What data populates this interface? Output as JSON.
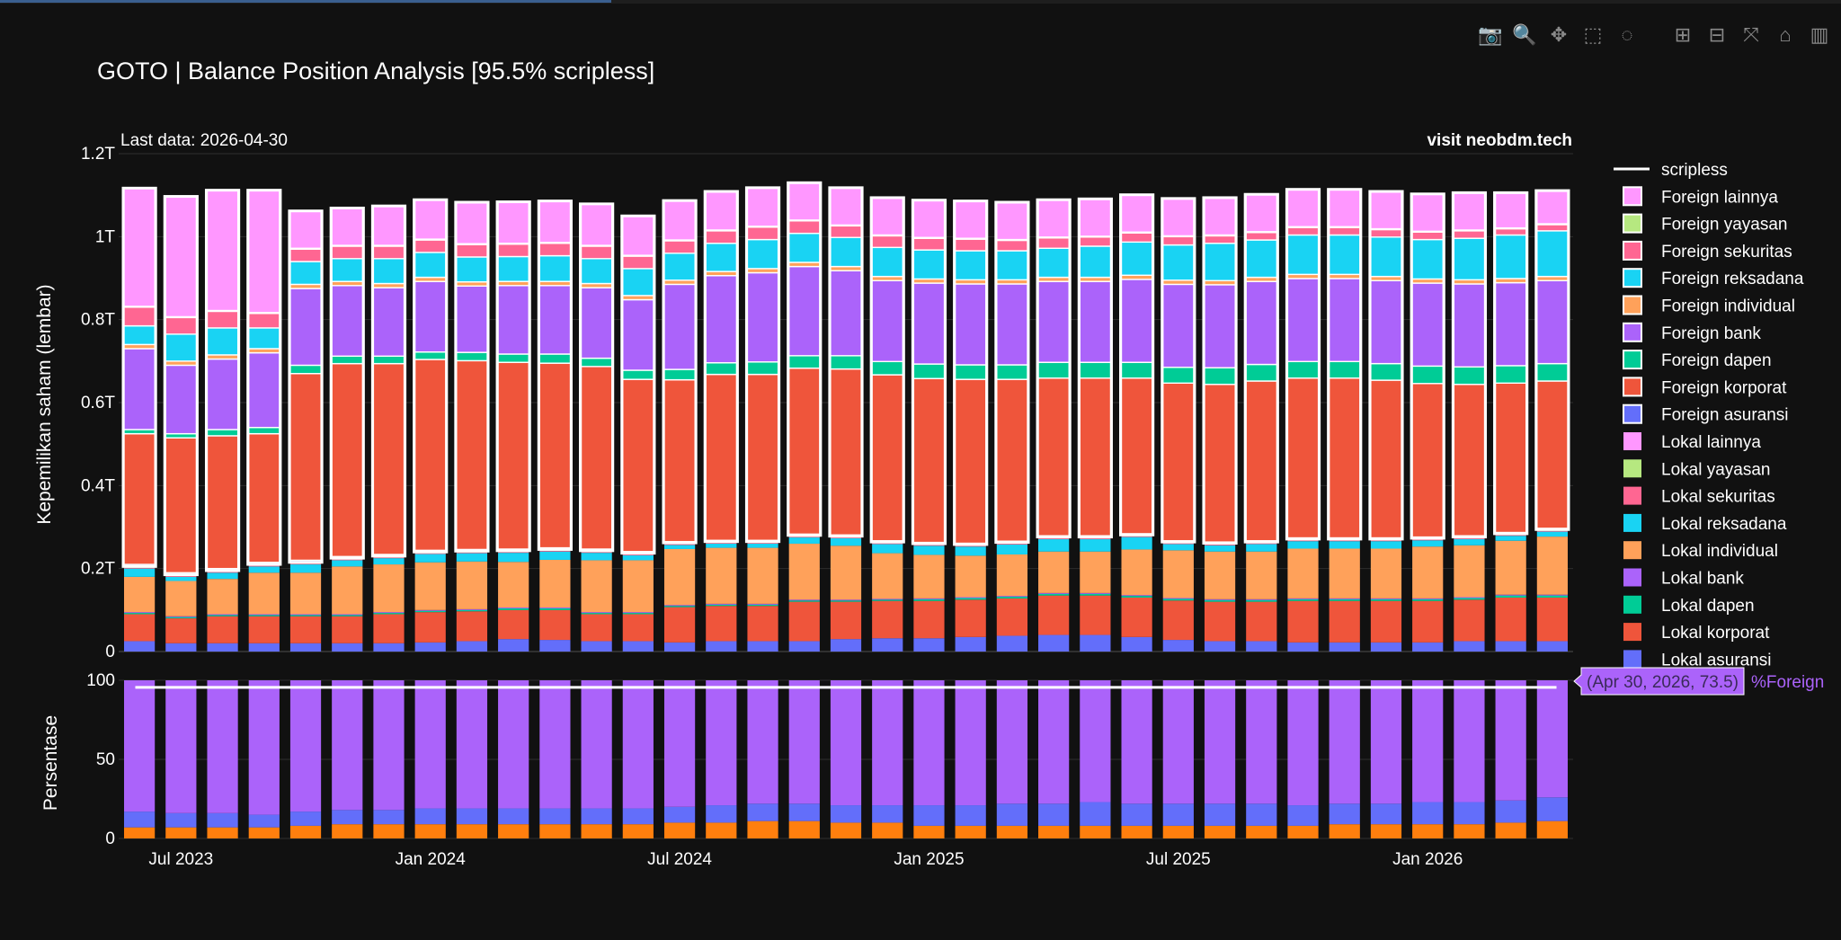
{
  "modebar": {
    "items": [
      {
        "name": "camera-icon",
        "glyph": "📷"
      },
      {
        "name": "zoom-icon",
        "glyph": "🔍"
      },
      {
        "name": "pan-icon",
        "glyph": "✥"
      },
      {
        "name": "box-select-icon",
        "glyph": "⬚"
      },
      {
        "name": "lasso-select-icon",
        "glyph": "◌"
      },
      {
        "name": "zoom-in-icon",
        "glyph": "⊞"
      },
      {
        "name": "zoom-out-icon",
        "glyph": "⊟"
      },
      {
        "name": "autoscale-icon",
        "glyph": "⤧"
      },
      {
        "name": "reset-axes-icon",
        "glyph": "⌂"
      },
      {
        "name": "plotly-logo-icon",
        "glyph": "▥"
      }
    ]
  },
  "chart_data": {
    "type": "bar",
    "title": "GOTO | Balance Position Analysis [95.5% scripless]",
    "annotations": {
      "last_data": "Last data: 2026-04-30",
      "watermark": "visit neobdm.tech",
      "hover_label": "(Apr 30, 2026, 73.5)",
      "hover_series": "%Foreign"
    },
    "top_panel": {
      "ylabel": "Kepemilikan saham (lembar)",
      "ylim": [
        0,
        1.2
      ],
      "yticks": [
        0,
        0.2,
        0.4,
        0.6,
        0.8,
        1.0,
        1.2
      ],
      "ytick_labels": [
        "0",
        "0.2T",
        "0.4T",
        "0.6T",
        "0.8T",
        "1T",
        "1.2T"
      ],
      "unit": "trillion shares"
    },
    "bottom_panel": {
      "ylabel": "Persentase",
      "ylim": [
        0,
        100
      ],
      "yticks": [
        0,
        50,
        100
      ],
      "ytick_labels": [
        "0",
        "50",
        "100"
      ]
    },
    "x_tick_labels": [
      "Jul 2023",
      "Jan 2024",
      "Jul 2024",
      "Jan 2025",
      "Jul 2025",
      "Jan 2026"
    ],
    "x_tick_months": [
      1,
      7,
      13,
      19,
      25,
      31
    ],
    "dates": [
      "2023-06-30",
      "2023-07-31",
      "2023-08-31",
      "2023-09-30",
      "2023-10-31",
      "2023-11-30",
      "2023-12-31",
      "2024-01-31",
      "2024-02-29",
      "2024-03-31",
      "2024-04-30",
      "2024-05-31",
      "2024-06-30",
      "2024-07-31",
      "2024-08-31",
      "2024-09-30",
      "2024-10-31",
      "2024-11-30",
      "2024-12-31",
      "2025-01-31",
      "2025-02-28",
      "2025-03-31",
      "2025-04-30",
      "2025-05-31",
      "2025-06-30",
      "2025-07-31",
      "2025-08-31",
      "2025-09-30",
      "2025-10-31",
      "2025-11-30",
      "2025-12-31",
      "2026-01-31",
      "2026-02-28",
      "2026-03-31",
      "2026-04-30"
    ],
    "colors": {
      "asuransi": "#636efa",
      "korporat": "#ef553b",
      "dapen": "#00cc96",
      "bank": "#ab63fa",
      "individual": "#ffa15a",
      "reksadana": "#19d3f3",
      "sekuritas": "#ff6692",
      "yayasan": "#b6e880",
      "lainnya": "#ff97ff",
      "scripless": "#ffffff",
      "pct_foreign": "#ab63fa",
      "pct_lokal": "#636efa",
      "pct_other": "#ff7f0e"
    },
    "legend": {
      "placement": "right",
      "entries": [
        {
          "label": "scripless",
          "key": "scripless",
          "kind": "line"
        },
        {
          "label": "Foreign lainnya",
          "key": "lainnya",
          "kind": "box"
        },
        {
          "label": "Foreign yayasan",
          "key": "yayasan",
          "kind": "box"
        },
        {
          "label": "Foreign sekuritas",
          "key": "sekuritas",
          "kind": "box"
        },
        {
          "label": "Foreign reksadana",
          "key": "reksadana",
          "kind": "box"
        },
        {
          "label": "Foreign individual",
          "key": "individual",
          "kind": "box"
        },
        {
          "label": "Foreign bank",
          "key": "bank",
          "kind": "box"
        },
        {
          "label": "Foreign dapen",
          "key": "dapen",
          "kind": "box"
        },
        {
          "label": "Foreign korporat",
          "key": "korporat",
          "kind": "box"
        },
        {
          "label": "Foreign asuransi",
          "key": "asuransi",
          "kind": "box"
        },
        {
          "label": "Lokal lainnya",
          "key": "lainnya",
          "kind": "fill"
        },
        {
          "label": "Lokal yayasan",
          "key": "yayasan",
          "kind": "fill"
        },
        {
          "label": "Lokal sekuritas",
          "key": "sekuritas",
          "kind": "fill"
        },
        {
          "label": "Lokal reksadana",
          "key": "reksadana",
          "kind": "fill"
        },
        {
          "label": "Lokal individual",
          "key": "individual",
          "kind": "fill"
        },
        {
          "label": "Lokal bank",
          "key": "bank",
          "kind": "fill"
        },
        {
          "label": "Lokal dapen",
          "key": "dapen",
          "kind": "fill"
        },
        {
          "label": "Lokal korporat",
          "key": "korporat",
          "kind": "fill"
        },
        {
          "label": "Lokal asuransi",
          "key": "asuransi",
          "kind": "fill"
        }
      ]
    },
    "stack_order": [
      "asuransi",
      "korporat",
      "dapen",
      "bank",
      "individual",
      "reksadana",
      "sekuritas",
      "yayasan",
      "lainnya"
    ],
    "series": {
      "asuransi": [
        0.025,
        0.02,
        0.02,
        0.02,
        0.02,
        0.02,
        0.02,
        0.022,
        0.025,
        0.03,
        0.028,
        0.025,
        0.025,
        0.022,
        0.025,
        0.025,
        0.025,
        0.03,
        0.032,
        0.032,
        0.035,
        0.038,
        0.04,
        0.04,
        0.035,
        0.028,
        0.025,
        0.025,
        0.022,
        0.022,
        0.022,
        0.022,
        0.025,
        0.025,
        0.025
      ],
      "korporat": [
        0.065,
        0.06,
        0.065,
        0.065,
        0.065,
        0.065,
        0.07,
        0.073,
        0.072,
        0.07,
        0.072,
        0.065,
        0.065,
        0.085,
        0.085,
        0.085,
        0.095,
        0.09,
        0.09,
        0.09,
        0.09,
        0.09,
        0.095,
        0.095,
        0.095,
        0.095,
        0.095,
        0.095,
        0.1,
        0.1,
        0.1,
        0.1,
        0.1,
        0.105,
        0.105
      ],
      "dapen": [
        0.003,
        0.003,
        0.003,
        0.003,
        0.003,
        0.003,
        0.003,
        0.003,
        0.003,
        0.004,
        0.004,
        0.003,
        0.003,
        0.003,
        0.003,
        0.003,
        0.003,
        0.003,
        0.003,
        0.004,
        0.004,
        0.004,
        0.004,
        0.004,
        0.004,
        0.004,
        0.004,
        0.004,
        0.004,
        0.004,
        0.004,
        0.004,
        0.004,
        0.005,
        0.005
      ],
      "bank": [
        0.002,
        0.002,
        0.002,
        0.002,
        0.002,
        0.002,
        0.002,
        0.002,
        0.002,
        0.002,
        0.002,
        0.002,
        0.002,
        0.002,
        0.002,
        0.002,
        0.002,
        0.002,
        0.002,
        0.002,
        0.002,
        0.002,
        0.002,
        0.002,
        0.002,
        0.002,
        0.002,
        0.002,
        0.002,
        0.002,
        0.002,
        0.002,
        0.002,
        0.002,
        0.002
      ],
      "individual": [
        0.085,
        0.085,
        0.085,
        0.1,
        0.1,
        0.115,
        0.115,
        0.115,
        0.115,
        0.11,
        0.115,
        0.125,
        0.125,
        0.135,
        0.135,
        0.135,
        0.135,
        0.13,
        0.11,
        0.105,
        0.1,
        0.1,
        0.1,
        0.1,
        0.11,
        0.115,
        0.115,
        0.115,
        0.12,
        0.12,
        0.12,
        0.125,
        0.125,
        0.13,
        0.14
      ],
      "reksadana": [
        0.02,
        0.01,
        0.015,
        0.015,
        0.02,
        0.015,
        0.015,
        0.02,
        0.02,
        0.022,
        0.02,
        0.018,
        0.012,
        0.01,
        0.01,
        0.01,
        0.015,
        0.018,
        0.022,
        0.022,
        0.022,
        0.024,
        0.03,
        0.03,
        0.03,
        0.015,
        0.015,
        0.018,
        0.018,
        0.018,
        0.018,
        0.015,
        0.015,
        0.012,
        0.012
      ],
      "sekuritas": [
        0.002,
        0.002,
        0.002,
        0.002,
        0.002,
        0.002,
        0.002,
        0.002,
        0.002,
        0.002,
        0.002,
        0.002,
        0.002,
        0.002,
        0.002,
        0.002,
        0.002,
        0.002,
        0.002,
        0.002,
        0.002,
        0.002,
        0.002,
        0.002,
        0.002,
        0.002,
        0.002,
        0.002,
        0.002,
        0.002,
        0.002,
        0.002,
        0.002,
        0.002,
        0.002
      ],
      "yayasan": [
        0.001,
        0.001,
        0.001,
        0.001,
        0.001,
        0.001,
        0.001,
        0.001,
        0.001,
        0.001,
        0.001,
        0.001,
        0.001,
        0.001,
        0.001,
        0.001,
        0.001,
        0.001,
        0.001,
        0.001,
        0.001,
        0.001,
        0.001,
        0.001,
        0.001,
        0.001,
        0.001,
        0.001,
        0.001,
        0.001,
        0.001,
        0.001,
        0.001,
        0.001,
        0.001
      ],
      "lainnya": [
        0.002,
        0.002,
        0.002,
        0.002,
        0.002,
        0.002,
        0.002,
        0.002,
        0.002,
        0.002,
        0.002,
        0.002,
        0.002,
        0.002,
        0.002,
        0.002,
        0.002,
        0.002,
        0.002,
        0.002,
        0.002,
        0.002,
        0.002,
        0.002,
        0.002,
        0.002,
        0.002,
        0.002,
        0.002,
        0.002,
        0.002,
        0.002,
        0.002,
        0.002,
        0.002
      ]
    },
    "foreign_series": {
      "asuransi": [
        0.005,
        0.005,
        0.005,
        0.005,
        0.005,
        0.004,
        0.004,
        0.004,
        0.004,
        0.004,
        0.004,
        0.004,
        0.004,
        0.003,
        0.003,
        0.003,
        0.003,
        0.003,
        0.003,
        0.003,
        0.003,
        0.003,
        0.003,
        0.003,
        0.003,
        0.003,
        0.003,
        0.003,
        0.003,
        0.003,
        0.003,
        0.003,
        0.003,
        0.003,
        0.003
      ],
      "korporat": [
        0.315,
        0.325,
        0.32,
        0.31,
        0.45,
        0.465,
        0.46,
        0.46,
        0.455,
        0.45,
        0.445,
        0.44,
        0.415,
        0.39,
        0.4,
        0.4,
        0.4,
        0.4,
        0.4,
        0.395,
        0.395,
        0.39,
        0.38,
        0.38,
        0.375,
        0.38,
        0.38,
        0.385,
        0.385,
        0.385,
        0.38,
        0.37,
        0.365,
        0.36,
        0.355
      ],
      "dapen": [
        0.01,
        0.01,
        0.015,
        0.015,
        0.02,
        0.018,
        0.018,
        0.018,
        0.02,
        0.02,
        0.022,
        0.02,
        0.022,
        0.025,
        0.028,
        0.03,
        0.03,
        0.032,
        0.032,
        0.035,
        0.035,
        0.035,
        0.038,
        0.038,
        0.038,
        0.038,
        0.04,
        0.04,
        0.04,
        0.04,
        0.04,
        0.042,
        0.042,
        0.042,
        0.042
      ],
      "bank": [
        0.195,
        0.165,
        0.17,
        0.18,
        0.185,
        0.17,
        0.165,
        0.17,
        0.16,
        0.165,
        0.165,
        0.17,
        0.17,
        0.205,
        0.21,
        0.215,
        0.215,
        0.205,
        0.195,
        0.195,
        0.195,
        0.195,
        0.195,
        0.195,
        0.2,
        0.2,
        0.2,
        0.2,
        0.2,
        0.2,
        0.2,
        0.2,
        0.2,
        0.2,
        0.2
      ],
      "individual": [
        0.01,
        0.01,
        0.01,
        0.01,
        0.01,
        0.01,
        0.01,
        0.01,
        0.01,
        0.01,
        0.01,
        0.01,
        0.01,
        0.01,
        0.01,
        0.01,
        0.01,
        0.01,
        0.01,
        0.01,
        0.01,
        0.01,
        0.01,
        0.01,
        0.01,
        0.01,
        0.01,
        0.01,
        0.01,
        0.01,
        0.01,
        0.01,
        0.01,
        0.01,
        0.01
      ],
      "reksadana": [
        0.045,
        0.065,
        0.065,
        0.05,
        0.055,
        0.055,
        0.06,
        0.06,
        0.06,
        0.06,
        0.062,
        0.06,
        0.065,
        0.065,
        0.068,
        0.07,
        0.07,
        0.07,
        0.07,
        0.07,
        0.07,
        0.07,
        0.07,
        0.075,
        0.08,
        0.085,
        0.09,
        0.09,
        0.095,
        0.095,
        0.095,
        0.095,
        0.1,
        0.105,
        0.11
      ],
      "sekuritas": [
        0.045,
        0.04,
        0.04,
        0.035,
        0.03,
        0.03,
        0.03,
        0.03,
        0.03,
        0.03,
        0.03,
        0.03,
        0.03,
        0.03,
        0.03,
        0.03,
        0.03,
        0.028,
        0.028,
        0.028,
        0.028,
        0.025,
        0.025,
        0.022,
        0.022,
        0.02,
        0.018,
        0.018,
        0.018,
        0.018,
        0.018,
        0.018,
        0.018,
        0.015,
        0.015
      ],
      "yayasan": [
        0.002,
        0.002,
        0.002,
        0.002,
        0.002,
        0.002,
        0.002,
        0.002,
        0.002,
        0.002,
        0.002,
        0.002,
        0.002,
        0.002,
        0.002,
        0.002,
        0.002,
        0.002,
        0.002,
        0.002,
        0.002,
        0.002,
        0.002,
        0.002,
        0.002,
        0.002,
        0.002,
        0.002,
        0.002,
        0.002,
        0.002,
        0.002,
        0.002,
        0.002,
        0.002
      ],
      "lainnya": [
        0.285,
        0.29,
        0.29,
        0.295,
        0.09,
        0.09,
        0.095,
        0.095,
        0.1,
        0.1,
        0.1,
        0.1,
        0.095,
        0.095,
        0.093,
        0.093,
        0.09,
        0.09,
        0.09,
        0.09,
        0.09,
        0.09,
        0.09,
        0.09,
        0.09,
        0.09,
        0.09,
        0.09,
        0.09,
        0.09,
        0.09,
        0.09,
        0.09,
        0.085,
        0.08
      ]
    },
    "pct_other": [
      7,
      7,
      7,
      7,
      8,
      9,
      9,
      9,
      9,
      9,
      9,
      9,
      9,
      10,
      10,
      11,
      11,
      10,
      10,
      8,
      8,
      8,
      8,
      8,
      8,
      8,
      8,
      8,
      8,
      9,
      9,
      9,
      9,
      10,
      11
    ],
    "pct_lokal": [
      10,
      9,
      9,
      8,
      9,
      9,
      9,
      10,
      10,
      10,
      10,
      10,
      10,
      10,
      11,
      11,
      11,
      11,
      11,
      13,
      13,
      14,
      14,
      15,
      14,
      14,
      14,
      14,
      13,
      13,
      13,
      14,
      14,
      14,
      15
    ],
    "pct_foreign": [
      83,
      84,
      84,
      85,
      83,
      82,
      82,
      81,
      81,
      81,
      81,
      81,
      81,
      80,
      79,
      78,
      78,
      79,
      79,
      79,
      79,
      78,
      78,
      77,
      78,
      78,
      78,
      78,
      79,
      78,
      78,
      77,
      77,
      76,
      74
    ],
    "scripless_pct": 95.5
  }
}
